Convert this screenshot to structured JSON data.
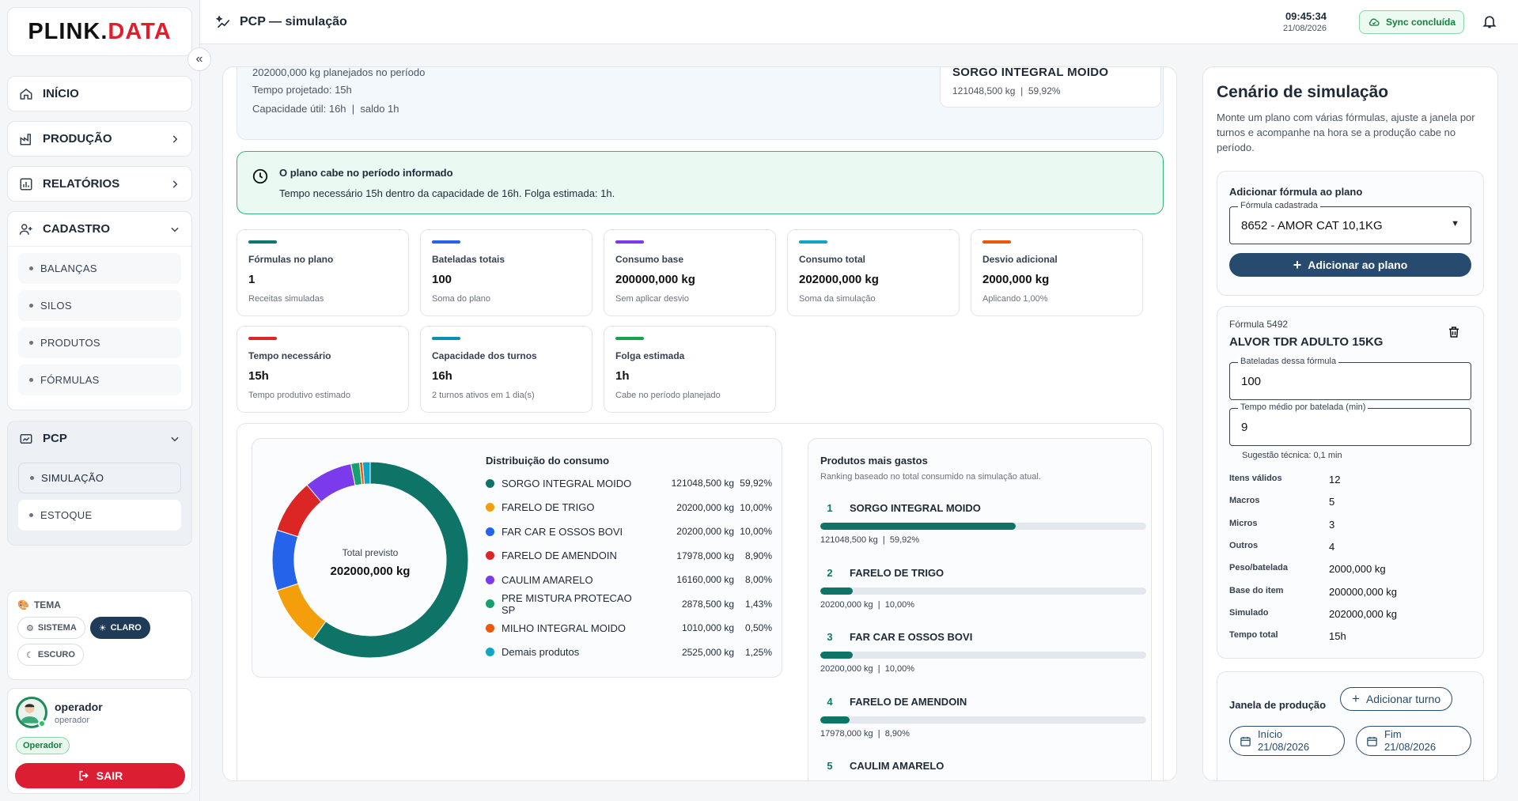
{
  "brand": {
    "part1": "PLINK.",
    "part2": "DATA"
  },
  "sidebar": {
    "home": "INÍCIO",
    "producao": "PRODUÇÃO",
    "relatorios": "RELATÓRIOS",
    "cadastro": "CADASTRO",
    "cadastro_items": [
      "BALANÇAS",
      "SILOS",
      "PRODUTOS",
      "FÓRMULAS"
    ],
    "pcp": "PCP",
    "pcp_items": [
      "SIMULAÇÃO",
      "ESTOQUE"
    ],
    "theme": {
      "title": "TEMA",
      "options": [
        "SISTEMA",
        "CLARO",
        "ESCURO"
      ],
      "selected": "CLARO"
    },
    "user": {
      "name": "operador",
      "role": "operador",
      "badge": "Operador",
      "logout": "SAIR"
    }
  },
  "header": {
    "title": "PCP — simulação",
    "time": "09:45:34",
    "date": "21/08/2026",
    "sync": "Sync concluída"
  },
  "summary": {
    "lines": [
      "202000,000 kg planejados no período",
      "Tempo projetado: 15h",
      "Capacidade útil: 16h  |  saldo 1h"
    ],
    "top_product": {
      "name": "SORGO INTEGRAL MOIDO",
      "value": "121048,500 kg  |  59,92%"
    }
  },
  "alert": {
    "title": "O plano cabe no período informado",
    "text": "Tempo necessário 15h dentro da capacidade de 16h. Folga estimada: 1h."
  },
  "cards": [
    {
      "label": "Fórmulas no plano",
      "value": "1",
      "sub": "Receitas simuladas",
      "color": "#0f766e"
    },
    {
      "label": "Bateladas totais",
      "value": "100",
      "sub": "Soma do plano",
      "color": "#2563eb"
    },
    {
      "label": "Consumo base",
      "value": "200000,000 kg",
      "sub": "Sem aplicar desvio",
      "color": "#7c3aed"
    },
    {
      "label": "Consumo total",
      "value": "202000,000 kg",
      "sub": "Soma da simulação",
      "color": "#0ea5c6"
    },
    {
      "label": "Desvio adicional",
      "value": "2000,000 kg",
      "sub": "Aplicando 1,00%",
      "color": "#ea580c"
    },
    {
      "label": "Tempo necessário",
      "value": "15h",
      "sub": "Tempo produtivo estimado",
      "color": "#dc2626"
    },
    {
      "label": "Capacidade dos turnos",
      "value": "16h",
      "sub": "2 turnos ativos em 1 dia(s)",
      "color": "#0891b2"
    },
    {
      "label": "Folga estimada",
      "value": "1h",
      "sub": "Cabe no período planejado",
      "color": "#16a34a"
    }
  ],
  "chart_data": {
    "type": "pie",
    "title": "Distribuição do consumo",
    "center_label": "Total previsto",
    "center_value": "202000,000 kg",
    "categories": [
      "SORGO INTEGRAL MOIDO",
      "FARELO DE TRIGO",
      "FAR CAR E OSSOS BOVI",
      "FARELO DE AMENDOIN",
      "CAULIM AMARELO",
      "PRE MISTURA PROTECAO SP",
      "MILHO INTEGRAL MOIDO",
      "Demais produtos"
    ],
    "values": [
      121048.5,
      20200,
      20200,
      17978,
      16160,
      2878.5,
      1010,
      2525
    ],
    "value_labels": [
      "121048,500 kg",
      "20200,000 kg",
      "20200,000 kg",
      "17978,000 kg",
      "16160,000 kg",
      "2878,500 kg",
      "1010,000 kg",
      "2525,000 kg"
    ],
    "percent_labels": [
      "59,92%",
      "10,00%",
      "10,00%",
      "8,90%",
      "8,00%",
      "1,43%",
      "0,50%",
      "1,25%"
    ],
    "percents": [
      59.92,
      10.0,
      10.0,
      8.9,
      8.0,
      1.43,
      0.5,
      1.25
    ],
    "colors": [
      "#0e7468",
      "#f59e0b",
      "#2563eb",
      "#dc2626",
      "#7c3aed",
      "#16a070",
      "#ea580c",
      "#0ea5c6"
    ]
  },
  "ranking": {
    "title": "Produtos mais gastos",
    "subtitle": "Ranking baseado no total consumido na simulação atual.",
    "items": [
      {
        "rank": "1",
        "name": "SORGO INTEGRAL MOIDO",
        "value": "121048,500 kg  |  59,92%",
        "percent": 59.92
      },
      {
        "rank": "2",
        "name": "FARELO DE TRIGO",
        "value": "20200,000 kg  |  10,00%",
        "percent": 10.0
      },
      {
        "rank": "3",
        "name": "FAR CAR E OSSOS BOVI",
        "value": "20200,000 kg  |  10,00%",
        "percent": 10.0
      },
      {
        "rank": "4",
        "name": "FARELO DE AMENDOIN",
        "value": "17978,000 kg  |  8,90%",
        "percent": 8.9
      },
      {
        "rank": "5",
        "name": "CAULIM AMARELO",
        "value": "",
        "percent": 8.0
      }
    ]
  },
  "scenario": {
    "title": "Cenário de simulação",
    "desc": "Monte um plano com várias fórmulas, ajuste a janela por turnos e acompanhe na hora se a produção cabe no período.",
    "add_title": "Adicionar fórmula ao plano",
    "formula_label": "Fórmula cadastrada",
    "formula_value": "8652 - AMOR CAT 10,1KG",
    "add_button": "Adicionar ao plano",
    "formula": {
      "code": "Fórmula 5492",
      "name": "ALVOR TDR ADULTO 15KG",
      "batches_label": "Bateladas dessa fórmula",
      "batches": "100",
      "time_label": "Tempo médio por batelada (min)",
      "time": "9",
      "hint": "Sugestão técnica: 0,1 min",
      "stats": [
        {
          "k": "Itens válidos",
          "v": "12"
        },
        {
          "k": "Macros",
          "v": "5"
        },
        {
          "k": "Micros",
          "v": "3"
        },
        {
          "k": "Outros",
          "v": "4"
        },
        {
          "k": "Peso/batelada",
          "v": "2000,000 kg"
        },
        {
          "k": "Base do item",
          "v": "200000,000 kg"
        },
        {
          "k": "Simulado",
          "v": "202000,000 kg"
        },
        {
          "k": "Tempo total",
          "v": "15h"
        }
      ]
    },
    "window": {
      "title": "Janela de produção",
      "add_shift": "Adicionar turno",
      "start_label": "Início",
      "start": "21/08/2026",
      "end_label": "Fim",
      "end": "21/08/2026"
    }
  }
}
